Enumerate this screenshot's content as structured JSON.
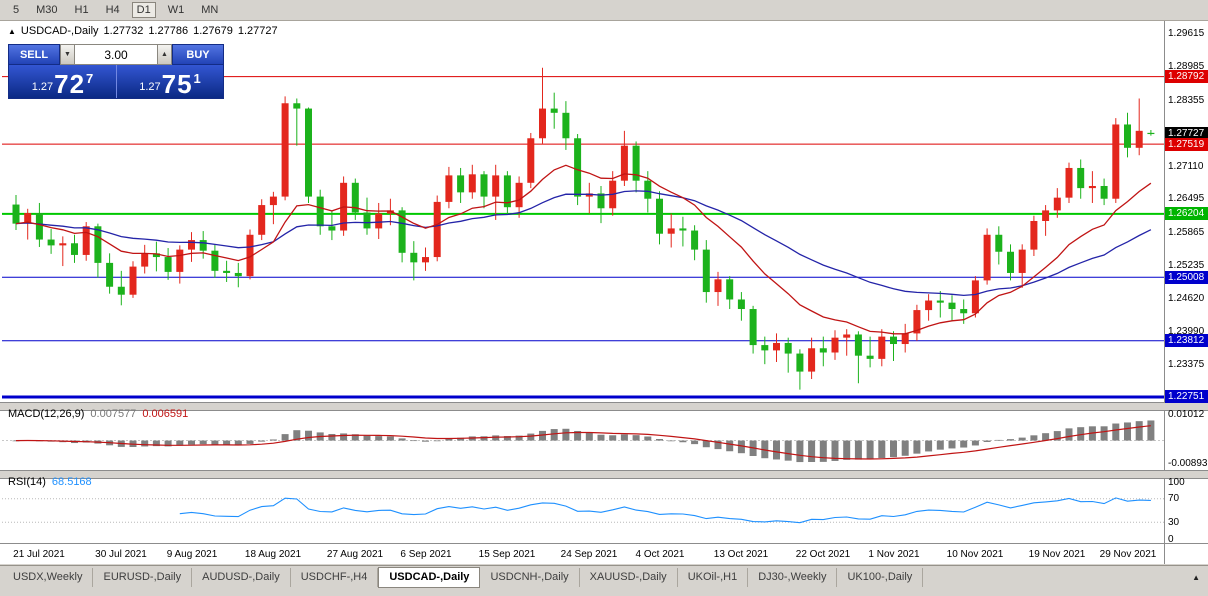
{
  "toolbar": {
    "timeframes": [
      {
        "label": "5",
        "active": false
      },
      {
        "label": "M30",
        "active": false
      },
      {
        "label": "H1",
        "active": false
      },
      {
        "label": "H4",
        "active": false
      },
      {
        "label": "D1",
        "active": true
      },
      {
        "label": "W1",
        "active": false
      },
      {
        "label": "MN",
        "active": false
      }
    ]
  },
  "chart": {
    "symbol_period": "USDCAD-,Daily",
    "ohlc": {
      "open": "1.27732",
      "high": "1.27786",
      "low": "1.27679",
      "close": "1.27727"
    }
  },
  "trade_panel": {
    "sell_label": "SELL",
    "buy_label": "BUY",
    "volume": "3.00",
    "sell_price": {
      "small": "1.27",
      "big": "72",
      "sup": "7"
    },
    "buy_price": {
      "small": "1.27",
      "big": "75",
      "sup": "1"
    }
  },
  "price_scale": {
    "plain_labels": [
      "1.29615",
      "1.28985",
      "1.28355",
      "1.27110",
      "1.26495",
      "1.25865",
      "1.25235",
      "1.24620",
      "1.23990",
      "1.23375"
    ],
    "badges": [
      {
        "text": "1.28792",
        "color": "#dd0000"
      },
      {
        "text": "1.27727",
        "color": "#000000"
      },
      {
        "text": "1.27519",
        "color": "#dd0000"
      },
      {
        "text": "1.26204",
        "color": "#00b400"
      },
      {
        "text": "1.25008",
        "color": "#0000cc"
      },
      {
        "text": "1.23812",
        "color": "#0000cc"
      },
      {
        "text": "1.22751",
        "color": "#0000cc"
      }
    ]
  },
  "levels": [
    {
      "price": 1.28792,
      "color": "#dd0000",
      "width": 1
    },
    {
      "price": 1.27519,
      "color": "#dd0000",
      "width": 1
    },
    {
      "price": 1.26204,
      "color": "#00c800",
      "width": 2
    },
    {
      "price": 1.25008,
      "color": "#0000cc",
      "width": 1
    },
    {
      "price": 1.23812,
      "color": "#0000cc",
      "width": 1
    },
    {
      "price": 1.22751,
      "color": "#0000cc",
      "width": 3
    }
  ],
  "macd_panel": {
    "label": "MACD(12,26,9)",
    "main_value": "0.007577",
    "signal_value": "0.006591",
    "scale_top": "0.01012",
    "scale_bottom": "-0.00893"
  },
  "rsi_panel": {
    "label": "RSI(14)",
    "value": "68.5168",
    "scale_labels": [
      "100",
      "70",
      "30",
      "0"
    ]
  },
  "date_axis": {
    "labels": [
      {
        "text": "21 Jul 2021",
        "index": 2
      },
      {
        "text": "30 Jul 2021",
        "index": 9
      },
      {
        "text": "9 Aug 2021",
        "index": 15
      },
      {
        "text": "18 Aug 2021",
        "index": 22
      },
      {
        "text": "27 Aug 2021",
        "index": 29
      },
      {
        "text": "6 Sep 2021",
        "index": 35
      },
      {
        "text": "15 Sep 2021",
        "index": 42
      },
      {
        "text": "24 Sep 2021",
        "index": 49
      },
      {
        "text": "4 Oct 2021",
        "index": 55
      },
      {
        "text": "13 Oct 2021",
        "index": 62
      },
      {
        "text": "22 Oct 2021",
        "index": 69
      },
      {
        "text": "1 Nov 2021",
        "index": 75
      },
      {
        "text": "10 Nov 2021",
        "index": 82
      },
      {
        "text": "19 Nov 2021",
        "index": 89
      },
      {
        "text": "29 Nov 2021",
        "index": 95
      }
    ]
  },
  "tabs": [
    {
      "label": "USDX,Weekly",
      "active": false
    },
    {
      "label": "EURUSD-,Daily",
      "active": false
    },
    {
      "label": "AUDUSD-,Daily",
      "active": false
    },
    {
      "label": "USDCHF-,H4",
      "active": false
    },
    {
      "label": "USDCAD-,Daily",
      "active": true
    },
    {
      "label": "USDCNH-,Daily",
      "active": false
    },
    {
      "label": "XAUUSD-,Daily",
      "active": false
    },
    {
      "label": "UKOil-,H1",
      "active": false
    },
    {
      "label": "DJ30-,Weekly",
      "active": false
    },
    {
      "label": "UK100-,Daily",
      "active": false
    }
  ],
  "colors": {
    "up": "#e3271d",
    "down": "#1cb21c",
    "ma_fast": "#c01414",
    "ma_slow": "#2424a8",
    "macd_hist": "#808080",
    "macd_signal": "#c01414",
    "rsi_line": "#1e90ff",
    "accent_panel": "#1c3fae"
  },
  "chart_data": {
    "type": "candlestick",
    "symbol": "USDCAD",
    "timeframe": "Daily",
    "price_range_visible": [
      1.2227,
      1.2967
    ],
    "indicators": {
      "ma_fast_period": 13,
      "ma_slow_period": 34,
      "macd_params": [
        12,
        26,
        9
      ],
      "rsi_period": 14
    },
    "candles": [
      [
        1.2638,
        1.2656,
        1.259,
        1.2602
      ],
      [
        1.2602,
        1.263,
        1.2572,
        1.2622
      ],
      [
        1.2622,
        1.2641,
        1.2558,
        1.2572
      ],
      [
        1.2572,
        1.2592,
        1.2545,
        1.2561
      ],
      [
        1.2561,
        1.2578,
        1.2522,
        1.2565
      ],
      [
        1.2565,
        1.2581,
        1.2528,
        1.2543
      ],
      [
        1.2543,
        1.2605,
        1.2532,
        1.2597
      ],
      [
        1.2597,
        1.2602,
        1.25,
        1.2528
      ],
      [
        1.2528,
        1.2546,
        1.247,
        1.2483
      ],
      [
        1.2483,
        1.2513,
        1.2448,
        1.2468
      ],
      [
        1.2468,
        1.2531,
        1.2462,
        1.2521
      ],
      [
        1.2521,
        1.2562,
        1.2508,
        1.2546
      ],
      [
        1.2546,
        1.2568,
        1.2512,
        1.2539
      ],
      [
        1.2539,
        1.2556,
        1.2496,
        1.2511
      ],
      [
        1.2511,
        1.2561,
        1.2489,
        1.2553
      ],
      [
        1.2553,
        1.2586,
        1.253,
        1.2571
      ],
      [
        1.2571,
        1.2588,
        1.2536,
        1.2551
      ],
      [
        1.2551,
        1.2562,
        1.25,
        1.2513
      ],
      [
        1.2513,
        1.2532,
        1.2492,
        1.2509
      ],
      [
        1.2509,
        1.2528,
        1.2482,
        1.2503
      ],
      [
        1.2503,
        1.2591,
        1.2497,
        1.2581
      ],
      [
        1.2581,
        1.2648,
        1.2571,
        1.2637
      ],
      [
        1.2637,
        1.2662,
        1.2601,
        1.2653
      ],
      [
        1.2653,
        1.2842,
        1.2646,
        1.2829
      ],
      [
        1.2829,
        1.2838,
        1.2749,
        1.2819
      ],
      [
        1.2819,
        1.2821,
        1.2641,
        1.2653
      ],
      [
        1.2653,
        1.2666,
        1.2581,
        1.2597
      ],
      [
        1.2597,
        1.2626,
        1.2571,
        1.2589
      ],
      [
        1.2589,
        1.2691,
        1.2579,
        1.2679
      ],
      [
        1.2679,
        1.2687,
        1.2609,
        1.2623
      ],
      [
        1.2623,
        1.2651,
        1.2581,
        1.2593
      ],
      [
        1.2593,
        1.2641,
        1.2573,
        1.2621
      ],
      [
        1.2621,
        1.2649,
        1.2599,
        1.2627
      ],
      [
        1.2627,
        1.2633,
        1.2529,
        1.2547
      ],
      [
        1.2547,
        1.2569,
        1.2495,
        1.2529
      ],
      [
        1.2529,
        1.2557,
        1.2513,
        1.2539
      ],
      [
        1.2539,
        1.2655,
        1.2531,
        1.2643
      ],
      [
        1.2643,
        1.2709,
        1.2631,
        1.2693
      ],
      [
        1.2693,
        1.2707,
        1.2641,
        1.2661
      ],
      [
        1.2661,
        1.2713,
        1.2649,
        1.2695
      ],
      [
        1.2695,
        1.2701,
        1.2631,
        1.2653
      ],
      [
        1.2653,
        1.2713,
        1.2609,
        1.2693
      ],
      [
        1.2693,
        1.2701,
        1.2621,
        1.2633
      ],
      [
        1.2633,
        1.2691,
        1.2613,
        1.2679
      ],
      [
        1.2679,
        1.2773,
        1.2669,
        1.2763
      ],
      [
        1.2763,
        1.2896,
        1.2753,
        1.2819
      ],
      [
        1.2819,
        1.2849,
        1.2781,
        1.2811
      ],
      [
        1.2811,
        1.2833,
        1.2741,
        1.2763
      ],
      [
        1.2763,
        1.2771,
        1.2637,
        1.2653
      ],
      [
        1.2653,
        1.2679,
        1.2621,
        1.2659
      ],
      [
        1.2659,
        1.2673,
        1.2603,
        1.2631
      ],
      [
        1.2631,
        1.2701,
        1.2617,
        1.2683
      ],
      [
        1.2683,
        1.2777,
        1.2673,
        1.2749
      ],
      [
        1.2749,
        1.2757,
        1.2661,
        1.2683
      ],
      [
        1.2683,
        1.2701,
        1.2623,
        1.2649
      ],
      [
        1.2649,
        1.2663,
        1.2563,
        1.2583
      ],
      [
        1.2583,
        1.2621,
        1.2557,
        1.2593
      ],
      [
        1.2593,
        1.2615,
        1.2559,
        1.2589
      ],
      [
        1.2589,
        1.2599,
        1.2533,
        1.2553
      ],
      [
        1.2553,
        1.2571,
        1.2453,
        1.2473
      ],
      [
        1.2473,
        1.2511,
        1.2447,
        1.2497
      ],
      [
        1.2497,
        1.2503,
        1.2441,
        1.2459
      ],
      [
        1.2459,
        1.2473,
        1.2419,
        1.2441
      ],
      [
        1.2441,
        1.2447,
        1.2357,
        1.2373
      ],
      [
        1.2373,
        1.2389,
        1.2337,
        1.2363
      ],
      [
        1.2363,
        1.2395,
        1.2341,
        1.2377
      ],
      [
        1.2377,
        1.2387,
        1.2321,
        1.2357
      ],
      [
        1.2357,
        1.2365,
        1.2289,
        1.2323
      ],
      [
        1.2323,
        1.2387,
        1.2309,
        1.2367
      ],
      [
        1.2367,
        1.2389,
        1.2333,
        1.2359
      ],
      [
        1.2359,
        1.2401,
        1.2345,
        1.2387
      ],
      [
        1.2387,
        1.2403,
        1.2353,
        1.2393
      ],
      [
        1.2393,
        1.2399,
        1.2301,
        1.2353
      ],
      [
        1.2353,
        1.2389,
        1.2331,
        1.2347
      ],
      [
        1.2347,
        1.2403,
        1.2333,
        1.2389
      ],
      [
        1.2389,
        1.2399,
        1.2343,
        1.2375
      ],
      [
        1.2375,
        1.2413,
        1.2359,
        1.2395
      ],
      [
        1.2395,
        1.2449,
        1.2381,
        1.2439
      ],
      [
        1.2439,
        1.2469,
        1.2419,
        1.2457
      ],
      [
        1.2457,
        1.2475,
        1.2425,
        1.2453
      ],
      [
        1.2453,
        1.2467,
        1.2419,
        1.2441
      ],
      [
        1.2441,
        1.2459,
        1.2413,
        1.2433
      ],
      [
        1.2433,
        1.2503,
        1.2425,
        1.2495
      ],
      [
        1.2495,
        1.2593,
        1.2487,
        1.2581
      ],
      [
        1.2581,
        1.2597,
        1.2525,
        1.2549
      ],
      [
        1.2549,
        1.2563,
        1.2495,
        1.2509
      ],
      [
        1.2509,
        1.2563,
        1.2481,
        1.2553
      ],
      [
        1.2553,
        1.2617,
        1.2541,
        1.2607
      ],
      [
        1.2607,
        1.2637,
        1.2579,
        1.2627
      ],
      [
        1.2627,
        1.2669,
        1.2613,
        1.2651
      ],
      [
        1.2651,
        1.2717,
        1.2641,
        1.2707
      ],
      [
        1.2707,
        1.2723,
        1.2649,
        1.2669
      ],
      [
        1.2669,
        1.2701,
        1.2641,
        1.2673
      ],
      [
        1.2673,
        1.2687,
        1.2637,
        1.2649
      ],
      [
        1.2649,
        1.2801,
        1.2641,
        1.2789
      ],
      [
        1.2789,
        1.2811,
        1.2727,
        1.2745
      ],
      [
        1.2745,
        1.2838,
        1.2731,
        1.2777
      ],
      [
        1.27732,
        1.27786,
        1.27679,
        1.27727
      ]
    ]
  }
}
